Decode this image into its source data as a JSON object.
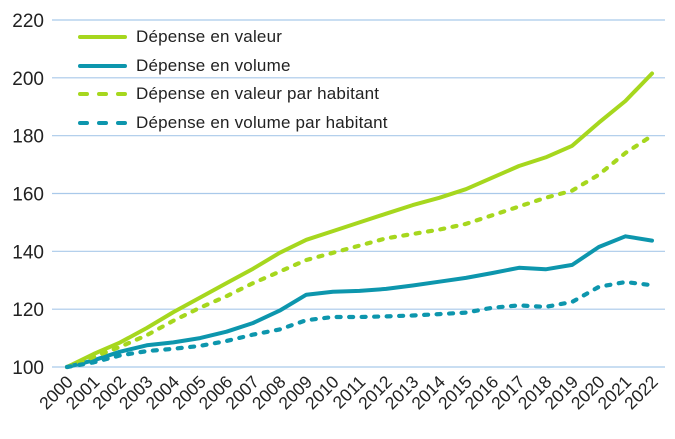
{
  "colors": {
    "lime": "#a6d71e",
    "teal": "#0d96ad",
    "grid": "#a9c9ea",
    "text": "#222222",
    "background": "#ffffff"
  },
  "chart_data": {
    "type": "line",
    "title": "",
    "xlabel": "",
    "ylabel": "",
    "x": [
      2000,
      2001,
      2002,
      2003,
      2004,
      2005,
      2006,
      2007,
      2008,
      2009,
      2010,
      2011,
      2012,
      2013,
      2014,
      2015,
      2016,
      2017,
      2018,
      2019,
      2020,
      2021,
      2022
    ],
    "series": [
      {
        "id": "valeur",
        "name": "Dépense en valeur",
        "style": "solid",
        "color_key": "lime",
        "values": [
          100,
          104.5,
          108.5,
          113.5,
          119,
          124,
          129,
          134,
          139.5,
          144,
          147,
          150,
          153,
          156,
          158.5,
          161.5,
          165.5,
          169.5,
          172.5,
          176.5,
          184.5,
          192,
          201.5
        ]
      },
      {
        "id": "volume",
        "name": "Dépense en volume",
        "style": "solid",
        "color_key": "teal",
        "values": [
          100,
          102.3,
          105.3,
          107.5,
          108.5,
          110,
          112.2,
          115.2,
          119.5,
          125,
          126,
          126.3,
          127,
          128.2,
          129.5,
          130.8,
          132.5,
          134.3,
          133.8,
          135.3,
          141.5,
          145.2,
          143.7
        ]
      },
      {
        "id": "valeur-par-habitant",
        "name": "Dépense en valeur par habitant",
        "style": "dashed",
        "color_key": "lime",
        "values": [
          100,
          103.5,
          107,
          111,
          116,
          120.5,
          124.5,
          129,
          133,
          137,
          139.5,
          142,
          144.5,
          146,
          147.5,
          149.5,
          152.5,
          155.5,
          158.5,
          161,
          166.5,
          174,
          180
        ]
      },
      {
        "id": "volume-par-habitant",
        "name": "Dépense en volume par habitant",
        "style": "dashed",
        "color_key": "teal",
        "values": [
          100,
          101.6,
          104,
          105.5,
          106.3,
          107.3,
          109,
          111.2,
          113,
          116.2,
          117.3,
          117.3,
          117.5,
          117.8,
          118.3,
          118.8,
          120.5,
          121.3,
          120.8,
          122.5,
          127.7,
          129.4,
          128.3
        ]
      }
    ],
    "ylim": [
      100,
      220
    ],
    "yticks": [
      100,
      120,
      140,
      160,
      180,
      200,
      220
    ],
    "grid": true,
    "legend_position": "top-left",
    "x_tick_rotation": -45
  }
}
